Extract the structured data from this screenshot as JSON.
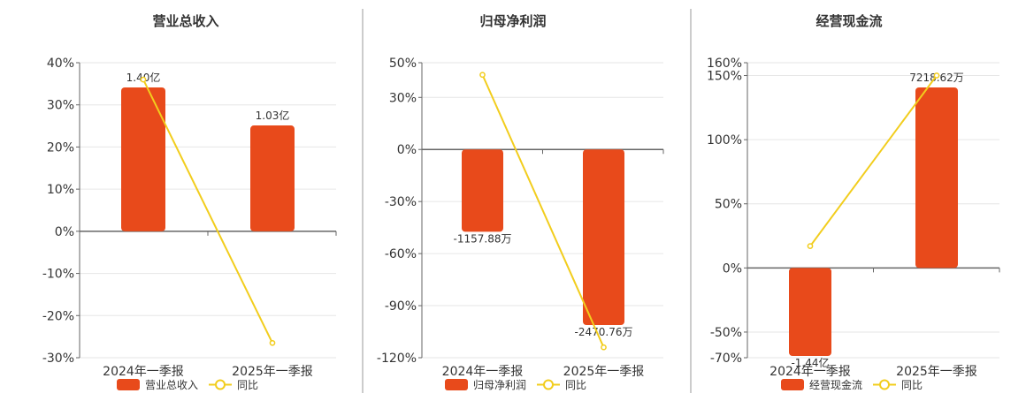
{
  "chart_data": [
    {
      "type": "bar",
      "title": "营业总收入",
      "categories": [
        "2024年一季报",
        "2025年一季报"
      ],
      "bar_series": {
        "name": "营业总收入",
        "values": [
          1.4,
          1.03
        ],
        "labels": [
          "1.40亿",
          "1.03亿"
        ],
        "color": "#E84A1B"
      },
      "line_series": {
        "name": "同比",
        "values": [
          36,
          -26.5
        ],
        "color": "#F2CD1D"
      },
      "axis": {
        "ylim": [
          -30,
          40
        ],
        "ticks": [
          -30,
          -20,
          -10,
          0,
          10,
          20,
          30,
          40
        ],
        "tick_labels": [
          "-30%",
          "-20%",
          "-10%",
          "0%",
          "10%",
          "20%",
          "30%",
          "40%"
        ]
      }
    },
    {
      "type": "bar",
      "title": "归母净利润",
      "categories": [
        "2024年一季报",
        "2025年一季报"
      ],
      "bar_series": {
        "name": "归母净利润",
        "values": [
          -1157.88,
          -2470.76
        ],
        "labels": [
          "-1157.88万",
          "-2470.76万"
        ],
        "color": "#E84A1B"
      },
      "line_series": {
        "name": "同比",
        "values": [
          43,
          -114
        ],
        "color": "#F2CD1D"
      },
      "axis": {
        "ylim": [
          -120,
          50
        ],
        "ticks": [
          -120,
          -90,
          -60,
          -30,
          0,
          30,
          50
        ],
        "tick_labels": [
          "-120%",
          "-90%",
          "-60%",
          "-30%",
          "0%",
          "30%",
          "50%"
        ]
      }
    },
    {
      "type": "bar",
      "title": "经营现金流",
      "categories": [
        "2024年一季报",
        "2025年一季报"
      ],
      "bar_series": {
        "name": "经营现金流",
        "values": [
          -14400,
          7218.62
        ],
        "labels": [
          "-1.44亿",
          "7218.62万"
        ],
        "color": "#E84A1B"
      },
      "line_series": {
        "name": "同比",
        "values": [
          17,
          150
        ],
        "color": "#F2CD1D"
      },
      "axis": {
        "ylim": [
          -70,
          160
        ],
        "ticks": [
          -70,
          -50,
          0,
          50,
          100,
          150,
          160
        ],
        "tick_labels": [
          "-70%",
          "-50%",
          "0%",
          "50%",
          "100%",
          "150%",
          "160%"
        ]
      }
    }
  ]
}
